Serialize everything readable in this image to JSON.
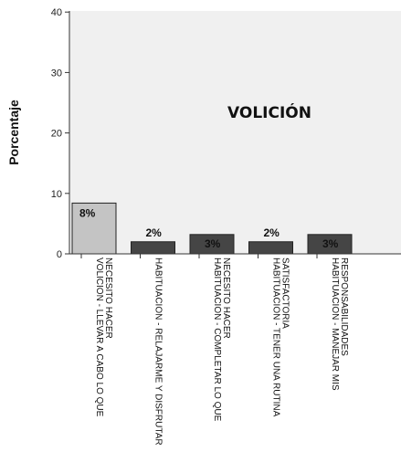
{
  "chart_data": {
    "type": "bar",
    "title": "VOLICIÓN",
    "ylabel": "Porcentaje",
    "xlabel": "",
    "ylim": [
      0,
      42
    ],
    "yticks": [
      0,
      10,
      20,
      30,
      40
    ],
    "grid": false,
    "categories": [
      [
        "VOLICION - LLEVAR A CABO LO QUE",
        "NECESITO HACER"
      ],
      [
        "HABITUACION - RELAJARME Y DISFRUTAR"
      ],
      [
        "HABITUACION - COMPLETAR LO QUE",
        "NECESITO HACER"
      ],
      [
        "HABITUACION - TENER UNA RUTINA",
        "SATISFACTORIA"
      ],
      [
        "HABITUACION - MANEJAR MIS",
        "RESPONSABILIDADES"
      ]
    ],
    "values": [
      8.4,
      2.0,
      3.2,
      2.0,
      3.2
    ],
    "data_labels": [
      "8%",
      "2%",
      "3%",
      "2%",
      "3%"
    ],
    "colors": {
      "highlight_bar": "#c4c4c4",
      "bar": "#454545",
      "plot_background": "#f0f0f0",
      "axis": "#333333"
    }
  }
}
